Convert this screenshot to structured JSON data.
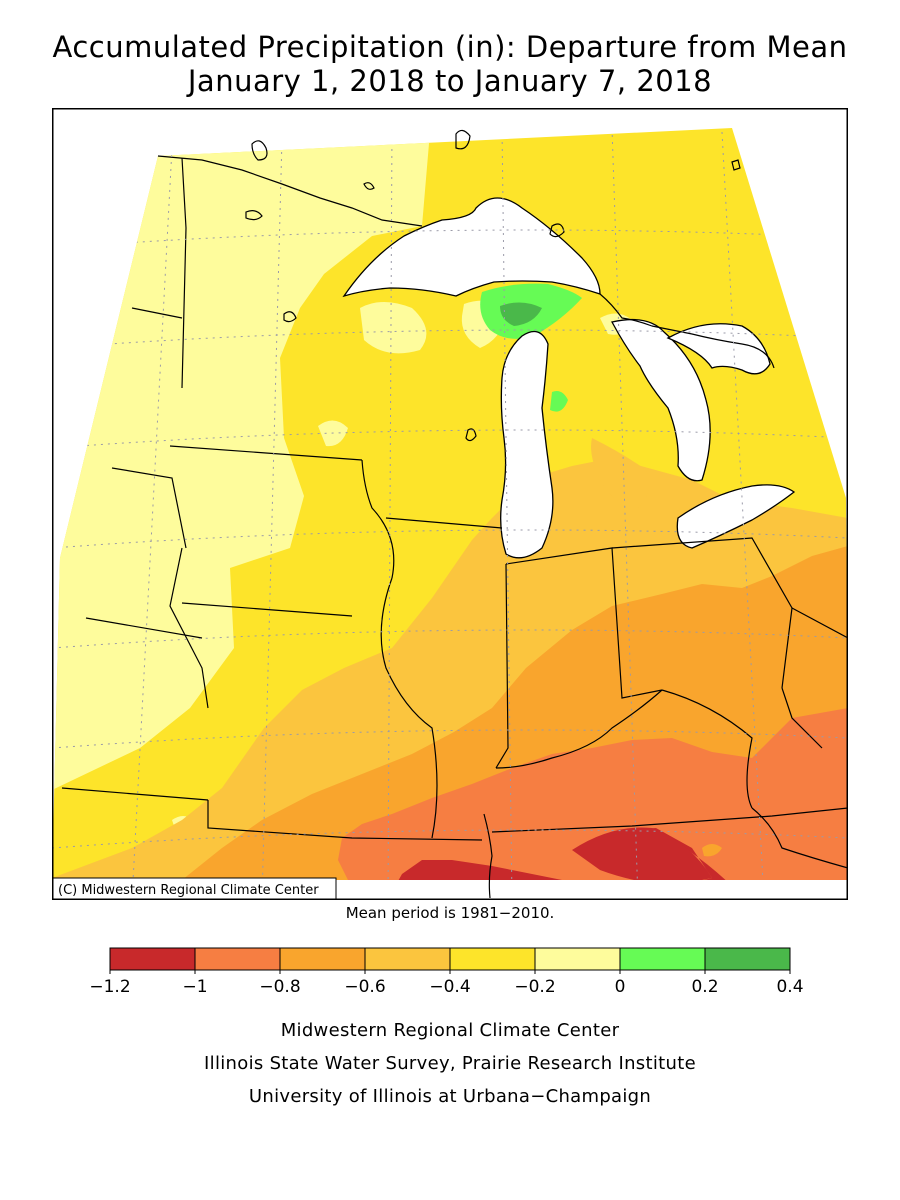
{
  "title": {
    "line1": "Accumulated Precipitation (in): Departure from Mean",
    "line2": "January 1, 2018 to January 7, 2018"
  },
  "map": {
    "copyright": "(C) Midwestern Regional Climate Center"
  },
  "mean_note": "Mean period is 1981−2010.",
  "legend": {
    "tick_labels": [
      "−1.2",
      "−1",
      "−0.8",
      "−0.6",
      "−0.4",
      "−0.2",
      "0",
      "0.2",
      "0.4"
    ],
    "bins": [
      {
        "from": -1.2,
        "to": -1.0,
        "color": "#c8292b"
      },
      {
        "from": -1.0,
        "to": -0.8,
        "color": "#f67e42"
      },
      {
        "from": -0.8,
        "to": -0.6,
        "color": "#f9a52d"
      },
      {
        "from": -0.6,
        "to": -0.4,
        "color": "#fbc53e"
      },
      {
        "from": -0.4,
        "to": -0.2,
        "color": "#fde42a"
      },
      {
        "from": -0.2,
        "to": 0.0,
        "color": "#fefc9c"
      },
      {
        "from": 0.0,
        "to": 0.2,
        "color": "#66fb55"
      },
      {
        "from": 0.2,
        "to": 0.4,
        "color": "#4ab84a"
      }
    ]
  },
  "credits": {
    "line1": "Midwestern Regional Climate Center",
    "line2": "Illinois State Water Survey, Prairie Research Institute",
    "line3": "University of Illinois at Urbana−Champaign"
  }
}
